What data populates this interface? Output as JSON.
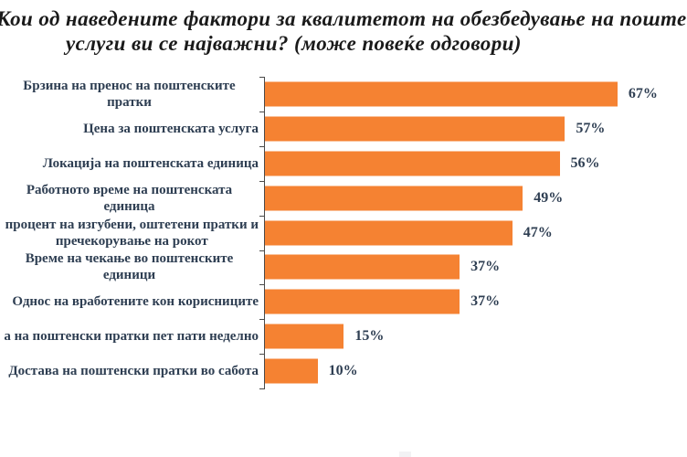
{
  "chart_data": {
    "type": "bar",
    "orientation": "horizontal",
    "title_line1": "Кои од наведените фактори за квалитетот на обезбедување на поште",
    "title_line2": "услуги ви се најважни? (може повеќе одговори)",
    "categories": [
      "Брзина на пренос на поштенските пратки",
      "Цена за поштенската услуга",
      "Локација на поштенската единица",
      "Работното време на поштенската единица",
      "процент на изгубени, оштетени пратки и\nпречекорување на рокот",
      "Време на чекање во поштенските единици",
      "Однос на вработените кон корисниците",
      "а на поштенски пратки пет пати неделно",
      "Достава на поштенски пратки во сабота"
    ],
    "values": [
      67,
      57,
      56,
      49,
      47,
      37,
      37,
      15,
      10
    ],
    "value_labels": [
      "67%",
      "57%",
      "56%",
      "49%",
      "47%",
      "37%",
      "37%",
      "15%",
      "10%"
    ],
    "xlabel": "",
    "ylabel": "",
    "xlim": [
      0,
      70
    ],
    "grid": false,
    "legend": null,
    "colors": {
      "bar": "#F58232",
      "category_label": "#2E3E52",
      "value_label": "#2E3E52",
      "axis": "#4A4A4A",
      "title": "#1A1A1A"
    }
  }
}
